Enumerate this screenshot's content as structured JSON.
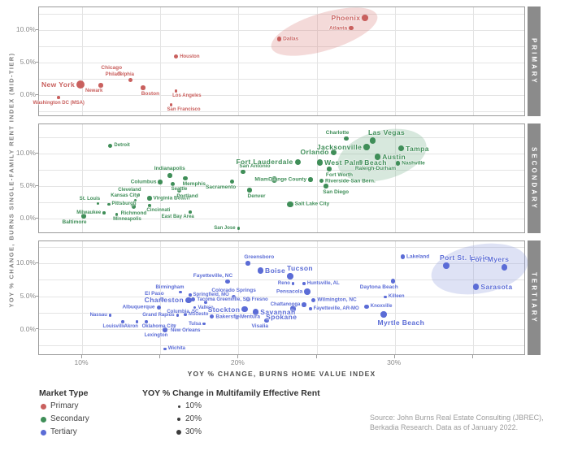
{
  "chart_data": {
    "type": "scatter",
    "xlabel": "YOY % CHANGE, BURNS HOME VALUE INDEX",
    "ylabel": "YOY % CHANGE, BURNS SINGLE-FAMILY RENT INDEX (MID-TIER)",
    "x_domain": [
      7.24,
      38.39
    ],
    "x_gridlines": [
      10,
      15,
      20,
      25,
      30,
      35
    ],
    "x_ticks": [
      {
        "v": 10,
        "label": "10%"
      },
      {
        "v": 20,
        "label": "20%"
      },
      {
        "v": 30,
        "label": "30%"
      }
    ],
    "y_ticks": [
      {
        "v": 10,
        "label": "10.0%"
      },
      {
        "v": 5,
        "label": "5.0%"
      },
      {
        "v": 0,
        "label": "0.0%"
      }
    ],
    "point_fields": [
      "city",
      "home_value_yoy_pct",
      "sf_rent_yoy_pct",
      "bubble_size_tier",
      "label_size_tier",
      "label_pos"
    ],
    "panels": [
      {
        "id": "primary",
        "strip_label": "PRIMARY",
        "color": "#c9605e",
        "top": 8,
        "height": 135,
        "y_top": 13.5,
        "y_bottom": -3.4,
        "y_gridlines": [
          12.5,
          10,
          7.5,
          5,
          2.5,
          0,
          -2.5
        ],
        "ellipse": {
          "cx": 25.5,
          "cy": 9.75,
          "rx": 68,
          "ry": 23,
          "rot": -17,
          "fill": "rgba(217,132,129,0.30)"
        },
        "points": [
          [
            "New York",
            9.9,
            1.6,
            4,
            3,
            "l"
          ],
          [
            "Washington DC (MSA)",
            8.5,
            -0.4,
            1,
            1,
            "b"
          ],
          [
            "Newark",
            11.2,
            1.5,
            2,
            1,
            "bl"
          ],
          [
            "Chicago",
            12.4,
            3.3,
            2,
            2,
            "al"
          ],
          [
            "Philadelphia",
            13.1,
            2.3,
            2,
            1,
            "al"
          ],
          [
            "Boston",
            13.9,
            1.1,
            2,
            2,
            "br"
          ],
          [
            "Houston",
            16.0,
            5.9,
            2,
            1,
            "r"
          ],
          [
            "Los Angeles",
            16.0,
            0.6,
            1,
            1,
            "br"
          ],
          [
            "San Francisco",
            15.7,
            -1.5,
            1,
            1,
            "br"
          ],
          [
            "Dallas",
            22.6,
            8.6,
            2,
            2,
            "r"
          ],
          [
            "Atlanta",
            27.2,
            10.3,
            2,
            2,
            "l"
          ],
          [
            "Phoenix",
            28.1,
            11.9,
            3,
            3,
            "l"
          ]
        ]
      },
      {
        "id": "secondary",
        "strip_label": "SECONDARY",
        "color": "#3f8e58",
        "top": 152,
        "height": 135,
        "y_top": 14.5,
        "y_bottom": -2.38,
        "y_gridlines": [
          12.5,
          10,
          7.5,
          5,
          2.5,
          0
        ],
        "ellipse": {
          "cx": 29.2,
          "cy": 9.7,
          "rx": 56,
          "ry": 30,
          "rot": -15,
          "fill": "rgba(122,180,142,0.30)"
        },
        "points": [
          [
            "Detroit",
            11.8,
            11.2,
            2,
            1,
            "r"
          ],
          [
            "Baltimore",
            10.1,
            0.4,
            2,
            2,
            "bl"
          ],
          [
            "St. Louis",
            11.0,
            2.3,
            1,
            1,
            "al"
          ],
          [
            "Milwaukee",
            11.4,
            0.9,
            1,
            1,
            "l"
          ],
          [
            "Pittsburgh",
            11.7,
            2.2,
            1,
            1,
            "r"
          ],
          [
            "Minneapolis",
            12.2,
            0.6,
            1,
            1,
            "br"
          ],
          [
            "Richmond",
            13.3,
            1.9,
            2,
            2,
            "b"
          ],
          [
            "Kansas City",
            13.4,
            2.8,
            1,
            1,
            "al"
          ],
          [
            "Cleveland",
            13.6,
            3.6,
            1,
            1,
            "al"
          ],
          [
            "Cincinnati",
            14.3,
            2.0,
            1,
            1,
            "br"
          ],
          [
            "Virginia Beach",
            14.3,
            3.1,
            2,
            2,
            "r"
          ],
          [
            "Columbus",
            15.0,
            5.6,
            2,
            2,
            "l"
          ],
          [
            "Indianapolis",
            15.6,
            6.6,
            2,
            2,
            "a"
          ],
          [
            "Seattle",
            15.8,
            5.3,
            2,
            1,
            "br"
          ],
          [
            "Portland",
            16.2,
            4.4,
            2,
            2,
            "br"
          ],
          [
            "Memphis",
            16.6,
            6.2,
            2,
            2,
            "br"
          ],
          [
            "East Bay Area",
            16.9,
            1.0,
            1,
            1,
            "bl"
          ],
          [
            "Sacramento",
            19.6,
            5.7,
            2,
            2,
            "bl"
          ],
          [
            "San Jose",
            20.0,
            -1.5,
            1,
            1,
            "l"
          ],
          [
            "San Antonio",
            20.3,
            7.2,
            2,
            2,
            "ar"
          ],
          [
            "Denver",
            20.7,
            4.4,
            2,
            2,
            "br"
          ],
          [
            "Miami",
            22.3,
            6.0,
            3,
            2,
            "l"
          ],
          [
            "Salt Lake City",
            23.3,
            2.2,
            3,
            2,
            "r"
          ],
          [
            "Fort Lauderdale",
            23.8,
            8.7,
            3,
            3,
            "l"
          ],
          [
            "Orange County",
            24.6,
            6.0,
            2,
            2,
            "l"
          ],
          [
            "West Palm Beach",
            25.2,
            8.6,
            3,
            3,
            "r"
          ],
          [
            "Riverside-San Bern.",
            25.3,
            5.8,
            2,
            2,
            "r"
          ],
          [
            "San Diego",
            25.6,
            5.0,
            2,
            2,
            "br"
          ],
          [
            "Fort Worth",
            25.8,
            7.6,
            2,
            2,
            "br"
          ],
          [
            "Orlando",
            26.1,
            10.2,
            3,
            3,
            "l"
          ],
          [
            "Charlotte",
            26.9,
            12.3,
            2,
            2,
            "al"
          ],
          [
            "Raleigh-Durham",
            27.8,
            8.6,
            2,
            2,
            "br"
          ],
          [
            "Jacksonville",
            28.2,
            11.0,
            3,
            3,
            "l"
          ],
          [
            "Las Vegas",
            28.6,
            12.0,
            3,
            3,
            "ar"
          ],
          [
            "Austin",
            28.9,
            9.5,
            3,
            3,
            "r"
          ],
          [
            "Nashville",
            30.2,
            8.5,
            2,
            2,
            "r"
          ],
          [
            "Tampa",
            30.4,
            10.8,
            3,
            3,
            "r"
          ]
        ]
      },
      {
        "id": "tertiary",
        "strip_label": "TERTIARY",
        "color": "#5b6cd6",
        "top": 296,
        "height": 141,
        "y_top": 13.33,
        "y_bottom": -4.07,
        "y_gridlines": [
          12.5,
          10,
          7.5,
          5,
          2.5,
          0,
          -2.5
        ],
        "ellipse": {
          "cx": 35.4,
          "cy": 9.1,
          "rx": 60,
          "ry": 30,
          "rot": -10,
          "fill": "rgba(147,158,223,0.30)"
        },
        "points": [
          [
            "Nassau",
            11.8,
            2.1,
            1,
            1,
            "l"
          ],
          [
            "Louisville",
            12.6,
            1.1,
            1,
            1,
            "bl"
          ],
          [
            "Akron",
            13.5,
            1.1,
            1,
            1,
            "bl"
          ],
          [
            "Oklahoma City",
            14.1,
            1.1,
            1,
            1,
            "br"
          ],
          [
            "Lexington",
            15.3,
            -0.1,
            2,
            1,
            "bl"
          ],
          [
            "New Orleans",
            15.9,
            0.5,
            1,
            1,
            "br"
          ],
          [
            "Wichita",
            15.3,
            -3.0,
            1,
            1,
            "r"
          ],
          [
            "Tulsa",
            17.8,
            0.8,
            1,
            1,
            "l"
          ],
          [
            "Grand Rapids",
            16.1,
            2.1,
            1,
            1,
            "l"
          ],
          [
            "Modesto",
            16.6,
            2.2,
            1,
            1,
            "r"
          ],
          [
            "Albuquerque",
            14.9,
            3.3,
            2,
            2,
            "l"
          ],
          [
            "El Paso",
            15.1,
            4.5,
            2,
            2,
            "al"
          ],
          [
            "Birmingham",
            16.3,
            5.6,
            1,
            1,
            "al"
          ],
          [
            "Charleston",
            16.8,
            4.4,
            3,
            3,
            "l"
          ],
          [
            "Springfield, MO",
            16.9,
            5.2,
            1,
            1,
            "r"
          ],
          [
            "Columbia, SC",
            17.2,
            3.3,
            1,
            1,
            "bl"
          ],
          [
            "Tacoma",
            17.1,
            4.5,
            2,
            1,
            "r"
          ],
          [
            "Vallejo",
            17.9,
            4.1,
            1,
            1,
            "b"
          ],
          [
            "Greenville, SC",
            18.4,
            4.5,
            1,
            1,
            "r"
          ],
          [
            "Fayetteville, NC",
            19.3,
            7.2,
            2,
            2,
            "al"
          ],
          [
            "Colorado Springs",
            19.7,
            4.9,
            2,
            2,
            "a"
          ],
          [
            "Fresno",
            20.6,
            4.5,
            2,
            1,
            "r"
          ],
          [
            "Stockton",
            20.4,
            3.0,
            3,
            3,
            "l"
          ],
          [
            "Savannah",
            21.1,
            2.6,
            3,
            3,
            "r"
          ],
          [
            "Bakersfield",
            18.3,
            1.9,
            2,
            2,
            "r"
          ],
          [
            "Ventura",
            19.9,
            1.8,
            2,
            2,
            "r"
          ],
          [
            "Visalia",
            21.8,
            1.3,
            2,
            2,
            "bl"
          ],
          [
            "Spokane",
            23.5,
            3.1,
            3,
            3,
            "bl"
          ],
          [
            "Boise",
            21.4,
            8.9,
            3,
            3,
            "r"
          ],
          [
            "Greensboro",
            20.6,
            10.0,
            2,
            2,
            "ar"
          ],
          [
            "Tucson",
            23.3,
            8.0,
            3,
            3,
            "ar"
          ],
          [
            "Reno",
            23.5,
            6.9,
            1,
            1,
            "l"
          ],
          [
            "Huntsville, AL",
            24.2,
            6.9,
            1,
            1,
            "r"
          ],
          [
            "Pensacola",
            24.4,
            5.7,
            3,
            2,
            "l"
          ],
          [
            "Wilmington, NC",
            24.8,
            4.4,
            2,
            2,
            "r"
          ],
          [
            "Chattanooga",
            24.2,
            3.7,
            2,
            1,
            "l"
          ],
          [
            "Fayetteville, AR-MO",
            24.6,
            3.1,
            1,
            1,
            "r"
          ],
          [
            "Daytona Beach",
            29.9,
            7.3,
            2,
            2,
            "bl"
          ],
          [
            "Killeen",
            29.4,
            4.9,
            1,
            1,
            "r"
          ],
          [
            "Knoxville",
            28.2,
            3.4,
            2,
            1,
            "r"
          ],
          [
            "Myrtle Beach",
            29.3,
            2.2,
            3,
            3,
            "br"
          ],
          [
            "Lakeland",
            30.5,
            11.0,
            2,
            2,
            "r"
          ],
          [
            "Port St. Lucie",
            33.3,
            9.6,
            3,
            3,
            "ar"
          ],
          [
            "Fort Myers",
            37.0,
            9.4,
            3,
            3,
            "al"
          ],
          [
            "Sarasota",
            35.2,
            6.4,
            3,
            3,
            "r"
          ]
        ]
      }
    ]
  },
  "legend": {
    "market_type": {
      "title": "Market Type",
      "items": [
        {
          "label": "Primary",
          "color": "#c9605e"
        },
        {
          "label": "Secondary",
          "color": "#3f8e58"
        },
        {
          "label": "Tertiary",
          "color": "#5b6cd6"
        }
      ]
    },
    "bubble": {
      "title": "YOY % Change in Multifamily Effective Rent",
      "items": [
        {
          "label": "10%",
          "size": 3
        },
        {
          "label": "20%",
          "size": 4.5
        },
        {
          "label": "30%",
          "size": 6.5
        }
      ]
    }
  },
  "source": {
    "line1": "Source: John Burns Real Estate Consulting (JBREC),",
    "line2": "Berkadia Research. Data as of January 2022."
  }
}
